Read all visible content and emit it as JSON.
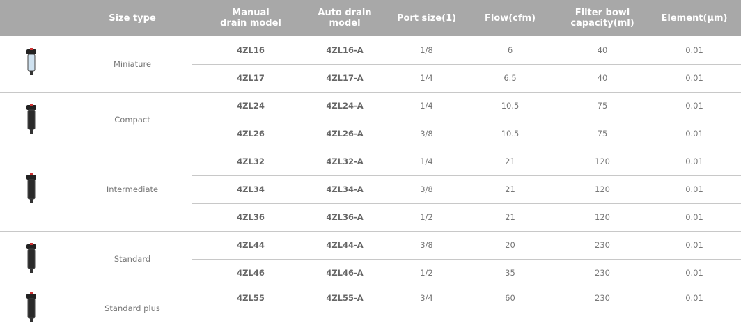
{
  "table": {
    "header": [
      "Size type",
      "Manual\ndrain model",
      "Auto drain\nmodel",
      "Port size(1)",
      "Flow(cfm)",
      "Filter bowl\ncapacity(ml)",
      "Element(μm)"
    ],
    "groups": [
      {
        "size_type": "Miniature",
        "rows": [
          [
            "4ZL16",
            "4ZL16-A",
            "1/8",
            "6",
            "40",
            "0.01"
          ],
          [
            "4ZL17",
            "4ZL17-A",
            "1/4",
            "6.5",
            "40",
            "0.01"
          ]
        ]
      },
      {
        "size_type": "Compact",
        "rows": [
          [
            "4ZL24",
            "4ZL24-A",
            "1/4",
            "10.5",
            "75",
            "0.01"
          ],
          [
            "4ZL26",
            "4ZL26-A",
            "3/8",
            "10.5",
            "75",
            "0.01"
          ]
        ]
      },
      {
        "size_type": "Intermediate",
        "rows": [
          [
            "4ZL32",
            "4ZL32-A",
            "1/4",
            "21",
            "120",
            "0.01"
          ],
          [
            "4ZL34",
            "4ZL34-A",
            "3/8",
            "21",
            "120",
            "0.01"
          ],
          [
            "4ZL36",
            "4ZL36-A",
            "1/2",
            "21",
            "120",
            "0.01"
          ]
        ]
      },
      {
        "size_type": "Standard",
        "rows": [
          [
            "4ZL44",
            "4ZL44-A",
            "3/8",
            "20",
            "230",
            "0.01"
          ],
          [
            "4ZL46",
            "4ZL46-A",
            "1/2",
            "35",
            "230",
            "0.01"
          ]
        ]
      },
      {
        "size_type": "Standard plus",
        "rows": [
          [
            "4ZL55",
            "4ZL55-A",
            "3/4",
            "60",
            "230",
            "0.01"
          ]
        ]
      }
    ]
  }
}
